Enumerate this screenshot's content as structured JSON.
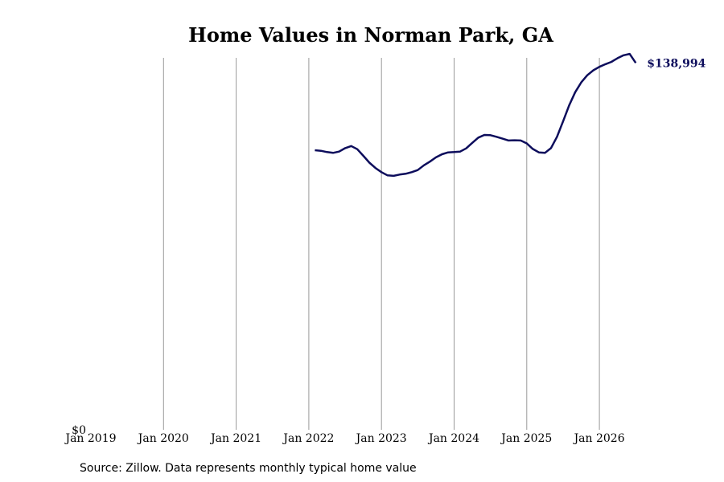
{
  "chart_data": {
    "type": "line",
    "title": "Home Values in Norman Park, GA",
    "xlabel": "",
    "ylabel": "",
    "x_ticks": [
      "Jan 2019",
      "Jan 2020",
      "Jan 2021",
      "Jan 2022",
      "Jan 2023",
      "Jan 2024",
      "Jan 2025",
      "Jan 2026"
    ],
    "y_ticks": [
      "$0"
    ],
    "ylim": [
      0,
      140000
    ],
    "xlim": [
      "2019-01",
      "2026-07"
    ],
    "grid": "vertical",
    "line_color": "#0d0d5c",
    "end_label": "$138,994",
    "source": "Source: Zillow. Data represents monthly typical home value",
    "series": [
      {
        "x": [
          "2022-02",
          "2022-03",
          "2022-04",
          "2022-05",
          "2022-06",
          "2022-07",
          "2022-08",
          "2022-09",
          "2022-10",
          "2022-11",
          "2022-12",
          "2023-01",
          "2023-02",
          "2023-03",
          "2023-04",
          "2023-05",
          "2023-06",
          "2023-07",
          "2023-08",
          "2023-09",
          "2023-10",
          "2023-11",
          "2023-12",
          "2024-01",
          "2024-02",
          "2024-03",
          "2024-04",
          "2024-05",
          "2024-06",
          "2024-07",
          "2024-08",
          "2024-09",
          "2024-10",
          "2024-11",
          "2024-12",
          "2025-01",
          "2025-02",
          "2025-03",
          "2025-04",
          "2025-05",
          "2025-06",
          "2025-07",
          "2025-08",
          "2025-09",
          "2025-10",
          "2025-11",
          "2025-12",
          "2026-01",
          "2026-02",
          "2026-03",
          "2026-04",
          "2026-05",
          "2026-06",
          "2026-07"
        ],
        "values": [
          105900,
          105700,
          105200,
          104900,
          105400,
          106700,
          107500,
          106300,
          103800,
          101200,
          99200,
          97600,
          96400,
          96200,
          96700,
          97000,
          97600,
          98400,
          100200,
          101600,
          103200,
          104400,
          105100,
          105200,
          105400,
          106600,
          108700,
          110700,
          111700,
          111600,
          111000,
          110300,
          109600,
          109700,
          109600,
          108500,
          106400,
          105100,
          104900,
          106700,
          111000,
          116800,
          122900,
          127900,
          131600,
          134300,
          136200,
          137500,
          138500,
          139400,
          140800,
          141900,
          142400,
          138994
        ]
      }
    ]
  }
}
